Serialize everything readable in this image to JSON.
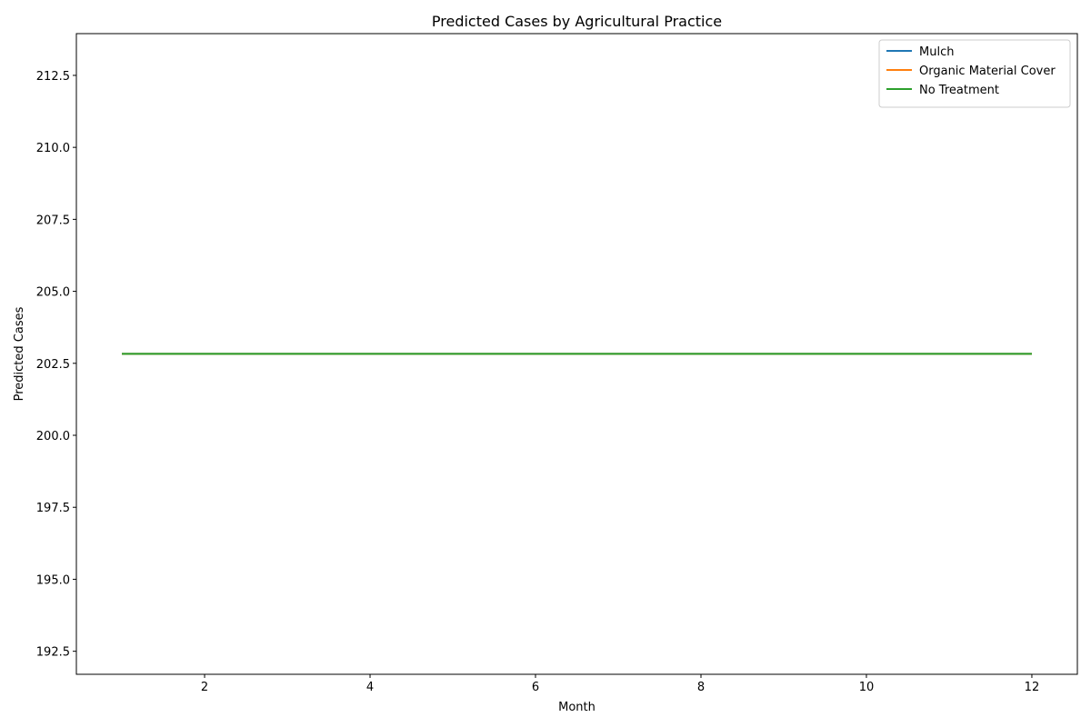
{
  "chart_data": {
    "type": "line",
    "title": "Predicted Cases by Agricultural Practice",
    "xlabel": "Month",
    "ylabel": "Predicted Cases",
    "xlim": [
      0.45,
      12.55
    ],
    "ylim": [
      191.7,
      213.95
    ],
    "x": [
      1,
      2,
      3,
      4,
      5,
      6,
      7,
      8,
      9,
      10,
      11,
      12
    ],
    "xticks": [
      2,
      4,
      6,
      8,
      10,
      12
    ],
    "xtick_labels": [
      "2",
      "4",
      "6",
      "8",
      "10",
      "12"
    ],
    "yticks": [
      192.5,
      195.0,
      197.5,
      200.0,
      202.5,
      205.0,
      207.5,
      210.0,
      212.5
    ],
    "ytick_labels": [
      "192.5",
      "195.0",
      "197.5",
      "200.0",
      "202.5",
      "205.0",
      "207.5",
      "210.0",
      "212.5"
    ],
    "grid": false,
    "legend_position": "top-right",
    "series": [
      {
        "name": "Mulch",
        "color": "#1f77b4",
        "values": [
          202.83,
          202.83,
          202.83,
          202.83,
          202.83,
          202.83,
          202.83,
          202.83,
          202.83,
          202.83,
          202.83,
          202.83
        ]
      },
      {
        "name": "Organic Material Cover",
        "color": "#ff7f0e",
        "values": [
          202.83,
          202.83,
          202.83,
          202.83,
          202.83,
          202.83,
          202.83,
          202.83,
          202.83,
          202.83,
          202.83,
          202.83
        ]
      },
      {
        "name": "No Treatment",
        "color": "#2ca02c",
        "values": [
          202.83,
          202.83,
          202.83,
          202.83,
          202.83,
          202.83,
          202.83,
          202.83,
          202.83,
          202.83,
          202.83,
          202.83
        ]
      }
    ]
  }
}
